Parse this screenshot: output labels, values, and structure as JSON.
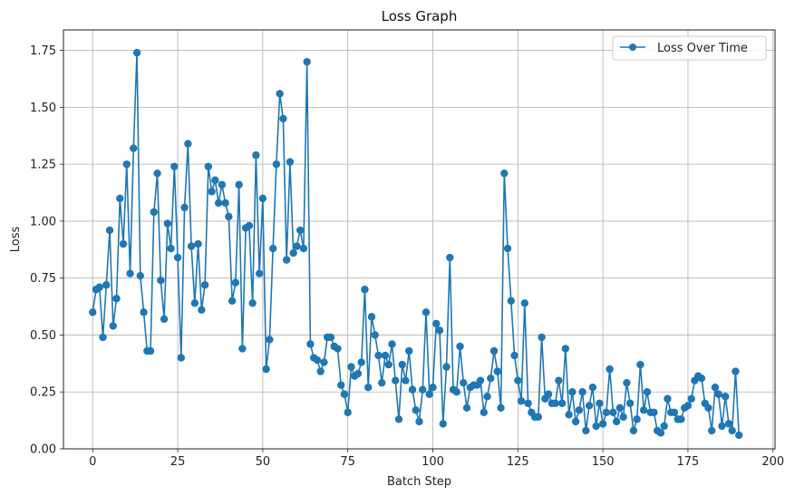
{
  "chart_data": {
    "type": "line",
    "title": "Loss Graph",
    "xlabel": "Batch Step",
    "ylabel": "Loss",
    "xlim": [
      -8.6,
      200.6
    ],
    "ylim": [
      0,
      1.84
    ],
    "x_ticks": [
      0,
      25,
      50,
      75,
      100,
      125,
      150,
      175,
      200
    ],
    "y_ticks": [
      0.0,
      0.25,
      0.5,
      0.75,
      1.0,
      1.25,
      1.5,
      1.75
    ],
    "x_tick_labels": [
      "0",
      "25",
      "50",
      "75",
      "100",
      "125",
      "150",
      "175",
      "200"
    ],
    "y_tick_labels": [
      "0.00",
      "0.25",
      "0.50",
      "0.75",
      "1.00",
      "1.25",
      "1.50",
      "1.75"
    ],
    "grid": true,
    "legend_position": "top-right",
    "series_color": "#1f77b4",
    "series": [
      {
        "name": "Loss Over Time",
        "y": [
          0.6,
          0.7,
          0.71,
          0.49,
          0.72,
          0.96,
          0.54,
          0.66,
          1.1,
          0.9,
          1.25,
          0.77,
          1.32,
          1.74,
          0.76,
          0.6,
          0.43,
          0.43,
          1.04,
          1.21,
          0.74,
          0.57,
          0.99,
          0.88,
          1.24,
          0.84,
          0.4,
          1.06,
          1.34,
          0.89,
          0.64,
          0.9,
          0.61,
          0.72,
          1.24,
          1.13,
          1.18,
          1.08,
          1.16,
          1.08,
          1.02,
          0.65,
          0.73,
          1.16,
          0.44,
          0.97,
          0.98,
          0.64,
          1.29,
          0.77,
          1.1,
          0.35,
          0.48,
          0.88,
          1.25,
          1.56,
          1.45,
          0.83,
          1.26,
          0.86,
          0.89,
          0.96,
          0.88,
          1.7,
          0.46,
          0.4,
          0.39,
          0.34,
          0.38,
          0.49,
          0.49,
          0.45,
          0.44,
          0.28,
          0.24,
          0.16,
          0.36,
          0.32,
          0.33,
          0.38,
          0.7,
          0.27,
          0.58,
          0.5,
          0.41,
          0.29,
          0.41,
          0.37,
          0.46,
          0.3,
          0.13,
          0.37,
          0.3,
          0.43,
          0.26,
          0.17,
          0.12,
          0.26,
          0.6,
          0.24,
          0.27,
          0.55,
          0.52,
          0.11,
          0.36,
          0.84,
          0.26,
          0.25,
          0.45,
          0.29,
          0.18,
          0.27,
          0.28,
          0.28,
          0.3,
          0.16,
          0.23,
          0.31,
          0.43,
          0.34,
          0.18,
          1.21,
          0.88,
          0.65,
          0.41,
          0.3,
          0.21,
          0.64,
          0.2,
          0.16,
          0.14,
          0.14,
          0.49,
          0.22,
          0.24,
          0.2,
          0.2,
          0.3,
          0.2,
          0.44,
          0.15,
          0.25,
          0.12,
          0.17,
          0.25,
          0.08,
          0.19,
          0.27,
          0.1,
          0.2,
          0.11,
          0.16,
          0.35,
          0.16,
          0.12,
          0.18,
          0.14,
          0.29,
          0.2,
          0.08,
          0.13,
          0.37,
          0.17,
          0.25,
          0.16,
          0.16,
          0.08,
          0.07,
          0.1,
          0.22,
          0.16,
          0.16,
          0.13,
          0.13,
          0.18,
          0.19,
          0.22,
          0.3,
          0.32,
          0.31,
          0.2,
          0.18,
          0.08,
          0.27,
          0.24,
          0.1,
          0.23,
          0.11,
          0.08,
          0.34,
          0.06
        ]
      }
    ]
  }
}
